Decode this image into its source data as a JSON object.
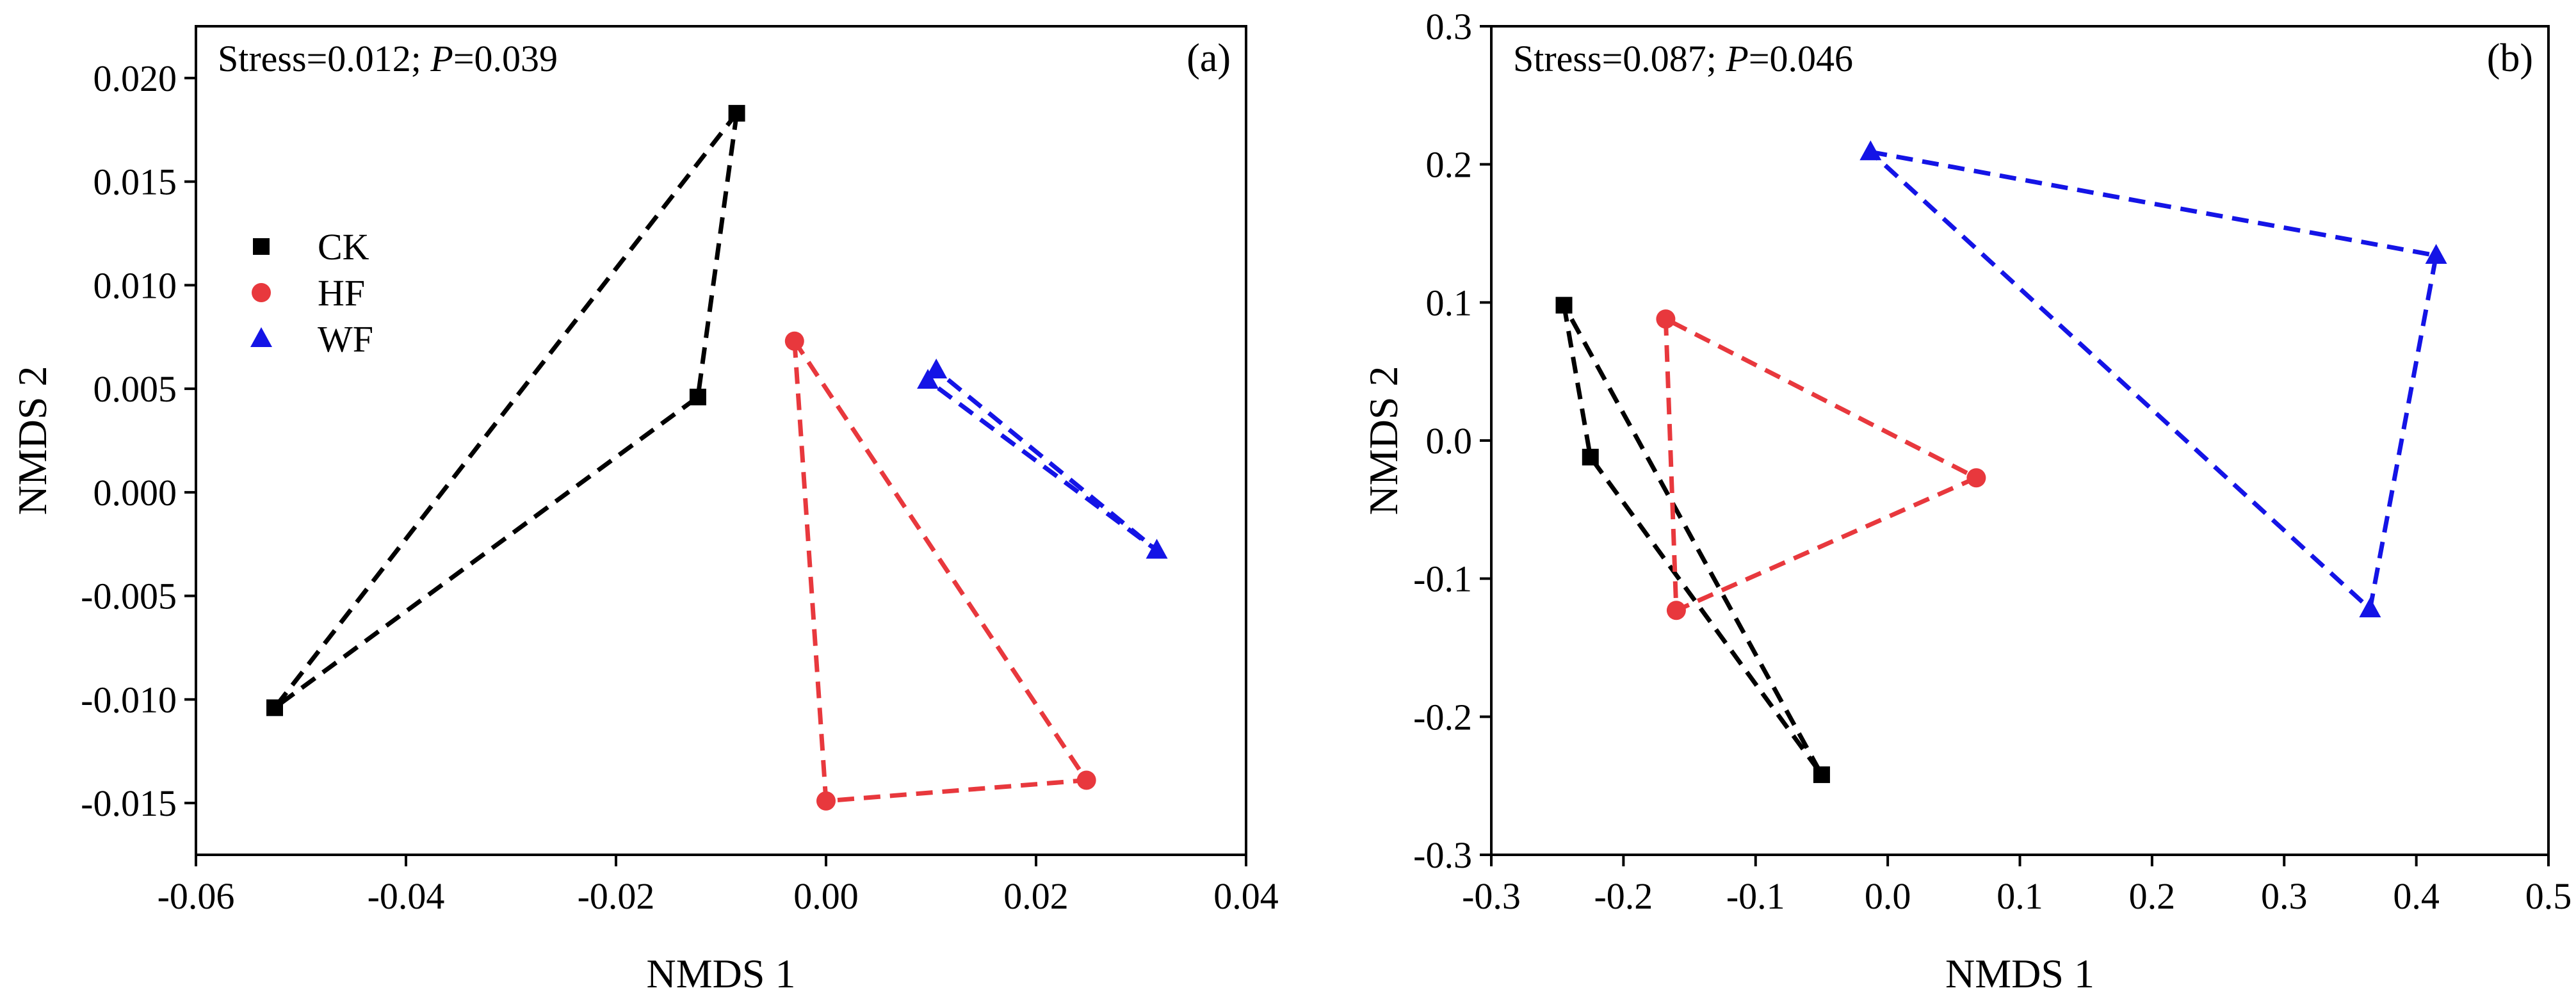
{
  "chart_data": [
    {
      "type": "scatter",
      "panel_label": "(a)",
      "annotation": {
        "stress_label": "Stress=0.012; ",
        "p_italic": "P",
        "p_value": "=0.039"
      },
      "xlabel": "NMDS 1",
      "ylabel": "NMDS 2",
      "xlim": [
        -0.06,
        0.04
      ],
      "ylim": [
        -0.0175,
        0.0225
      ],
      "xticks": [
        -0.06,
        -0.04,
        -0.02,
        0.0,
        0.02,
        0.04
      ],
      "xtick_labels": [
        "-0.06",
        "-0.04",
        "-0.02",
        "0.00",
        "0.02",
        "0.04"
      ],
      "yticks": [
        -0.015,
        -0.01,
        -0.005,
        0.0,
        0.005,
        0.01,
        0.015,
        0.02
      ],
      "ytick_labels": [
        "-0.015",
        "-0.010",
        "-0.005",
        "0.000",
        "0.005",
        "0.010",
        "0.015",
        "0.020"
      ],
      "legend": {
        "placement": "upper-left",
        "entries": [
          "CK",
          "HF",
          "WF"
        ]
      },
      "series": [
        {
          "name": "CK",
          "marker": "square",
          "color": "#000000",
          "points": [
            [
              -0.0085,
              0.0183
            ],
            [
              -0.0122,
              0.0046
            ],
            [
              -0.0525,
              -0.0104
            ]
          ]
        },
        {
          "name": "HF",
          "marker": "circle",
          "color": "#e8383d",
          "points": [
            [
              -0.003,
              0.0073
            ],
            [
              0.0,
              -0.0149
            ],
            [
              0.0248,
              -0.0139
            ]
          ]
        },
        {
          "name": "WF",
          "marker": "triangle",
          "color": "#1414e6",
          "points": [
            [
              0.0105,
              0.0059
            ],
            [
              0.0097,
              0.0054
            ],
            [
              0.0315,
              -0.0028
            ]
          ]
        }
      ]
    },
    {
      "type": "scatter",
      "panel_label": "(b)",
      "annotation": {
        "stress_label": "Stress=0.087; ",
        "p_italic": "P",
        "p_value": "=0.046"
      },
      "xlabel": "NMDS 1",
      "ylabel": "NMDS 2",
      "xlim": [
        -0.3,
        0.5
      ],
      "ylim": [
        -0.3,
        0.3
      ],
      "xticks": [
        -0.3,
        -0.2,
        -0.1,
        0.0,
        0.1,
        0.2,
        0.3,
        0.4,
        0.5
      ],
      "xtick_labels": [
        "-0.3",
        "-0.2",
        "-0.1",
        "0.0",
        "0.1",
        "0.2",
        "0.3",
        "0.4",
        "0.5"
      ],
      "yticks": [
        -0.3,
        -0.2,
        -0.1,
        0.0,
        0.1,
        0.2,
        0.3
      ],
      "ytick_labels": [
        "-0.3",
        "-0.2",
        "-0.1",
        "0.0",
        "0.1",
        "0.2",
        "0.3"
      ],
      "series": [
        {
          "name": "CK",
          "marker": "square",
          "color": "#000000",
          "points": [
            [
              -0.245,
              0.098
            ],
            [
              -0.225,
              -0.012
            ],
            [
              -0.05,
              -0.242
            ]
          ]
        },
        {
          "name": "HF",
          "marker": "circle",
          "color": "#e8383d",
          "points": [
            [
              -0.168,
              0.088
            ],
            [
              -0.16,
              -0.123
            ],
            [
              0.067,
              -0.027
            ]
          ]
        },
        {
          "name": "WF",
          "marker": "triangle",
          "color": "#1414e6",
          "points": [
            [
              -0.013,
              0.209
            ],
            [
              0.415,
              0.134
            ],
            [
              0.365,
              -0.122
            ]
          ]
        }
      ]
    }
  ]
}
